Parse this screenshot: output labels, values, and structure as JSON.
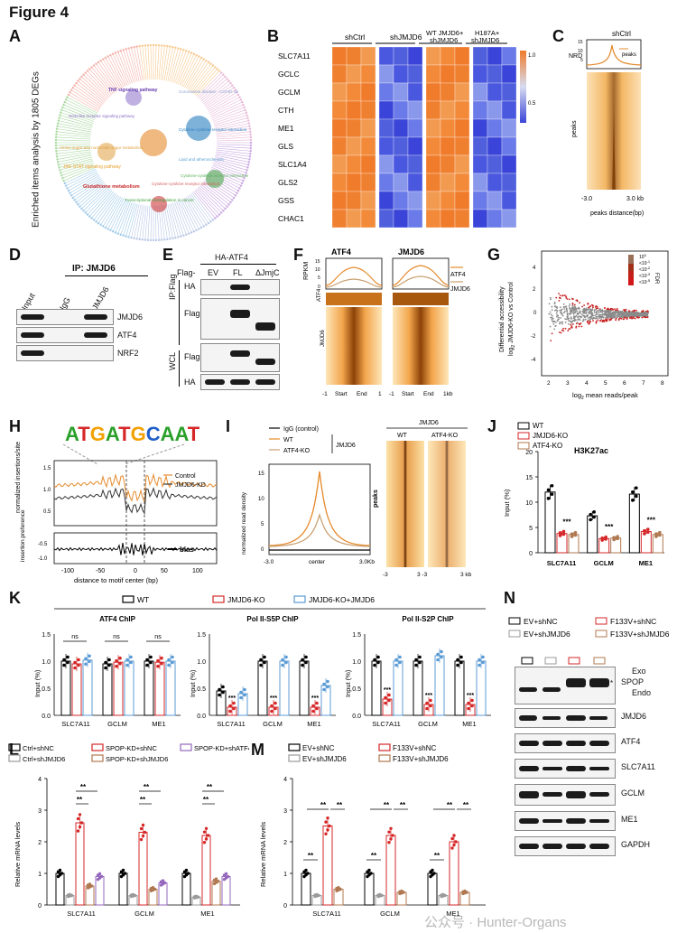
{
  "figure_title": "Figure 4",
  "panels": {
    "A": {
      "label": "A",
      "side_label": "Enriched items analysis by 1805 DEGs",
      "terms": [
        {
          "text": "TNF signaling pathway",
          "color": "#6a3fb0"
        },
        {
          "text": "Coronavirus disease - COVID-19",
          "color": "#8aa0d0"
        },
        {
          "text": "NOD-like receptor signaling pathway",
          "color": "#8a6fc8"
        },
        {
          "text": "Cytokine-cytokine receptor interaction",
          "color": "#2a7fc0"
        },
        {
          "text": "Lipid and atherosclerosis",
          "color": "#5aa0d0"
        },
        {
          "text": "Amino sugar and nucleotide sugar metabolism",
          "color": "#e0a040"
        },
        {
          "text": "JAK-STAT signaling pathway",
          "color": "#e8a030"
        },
        {
          "text": "Cytokine-cytokine receptor interaction",
          "color": "#5ab05a"
        },
        {
          "text": "Glutathione metabolism",
          "color": "#c82828"
        },
        {
          "text": "Cytokine-cytokine receptor interaction",
          "color": "#d86060"
        },
        {
          "text": "Transcriptional misregulation in cancer",
          "color": "#40a040"
        }
      ]
    },
    "B": {
      "label": "B",
      "groups": [
        "shCtrl",
        "shJMJD6",
        "WT JMJD6+\nshJMJD6",
        "H187A+\nshJMJD6"
      ],
      "genes": [
        "SLC7A11",
        "GCLC",
        "GCLM",
        "CTH",
        "ME1",
        "GLS",
        "SLC1A4",
        "GLS2",
        "GSS",
        "CHAC1"
      ],
      "scale_ticks": [
        "1.0",
        "0.5"
      ]
    },
    "C": {
      "label": "C",
      "title": "shCtrl",
      "ylabel_top": "NRD",
      "ticks_top": [
        "15",
        "10",
        "5"
      ],
      "legend": "peaks",
      "ylabel_heat": "peaks",
      "x_ticks": [
        "-3.0",
        "3.0 kb"
      ],
      "xlabel": "peaks distance(bp)"
    },
    "D": {
      "label": "D",
      "ip": "IP: JMJD6",
      "lanes": [
        "Input",
        "IgG",
        "JMJD6"
      ],
      "rows": [
        "JMJD6",
        "ATF4",
        "NRF2"
      ]
    },
    "E": {
      "label": "E",
      "header": "HA-ATF4",
      "flag_label": "Flag-",
      "lanes": [
        "EV",
        "FL",
        "ΔJmjC"
      ],
      "section_ip": "IP:Flag",
      "section_wcl": "WCL",
      "rows": [
        "HA",
        "Flag",
        "Flag",
        "HA"
      ]
    },
    "F": {
      "label": "F",
      "titles": [
        "ATF4",
        "JMJD6"
      ],
      "ylabel": "RPKM",
      "ticks": [
        "15",
        "10",
        "5",
        "0"
      ],
      "legend": [
        "ATF4",
        "JMJD6"
      ],
      "row_labels": [
        "ATF4",
        "JMJD6"
      ],
      "x_ticks": [
        "-1",
        "Start",
        "End",
        "1",
        "-1",
        "Start",
        "End",
        "1kb"
      ]
    },
    "G": {
      "label": "G",
      "ylabel_1": "Differential accessibility",
      "ylabel_2": "log",
      "ylabel_2_sub": "2",
      "ylabel_2_rest": " JMJD6-KO vs Control",
      "xlabel": "log",
      "xlabel_sub": "2",
      "xlabel_rest": " mean reads/peak",
      "x_ticks": [
        "2",
        "3",
        "4",
        "5",
        "6",
        "7",
        "8"
      ],
      "y_ticks": [
        "4",
        "2",
        "0",
        "-2",
        "-4"
      ],
      "legend_title": "FDR",
      "legend_items": [
        "10",
        "<10",
        "<10",
        "<10",
        "<10"
      ],
      "legend_exps": [
        "0",
        "-1",
        "-2",
        "-3",
        "-5"
      ]
    },
    "H": {
      "label": "H",
      "motif": "ATGATGCAAT",
      "legend": [
        "Control",
        "JMJD6-KD"
      ],
      "ylabel_top": "normalized insertions/site",
      "ylabel_bottom": "insertion preference",
      "bias_label": "bias",
      "y_ticks_top": [
        "1.5",
        "1.0",
        "0.5"
      ],
      "y_ticks_bottom": [
        "-0.5",
        "-1.0"
      ],
      "x_ticks": [
        "-100",
        "-50",
        "0",
        "50",
        "100"
      ],
      "xlabel": "distance to motif center (bp)"
    },
    "I": {
      "label": "I",
      "legend": [
        "IgG (control)",
        "WT",
        "ATF4-KO"
      ],
      "group_label": "JMJD6",
      "ylabel": "normalized read density",
      "y_ticks": [
        "15",
        "10",
        "5",
        "0"
      ],
      "x_ticks": [
        "-3.0",
        "center",
        "3.0Kb"
      ],
      "heat_title": "JMJD6",
      "heat_cols": [
        "WT",
        "ATF4-KO"
      ],
      "heat_ylabel": "peaks",
      "heat_x_ticks": [
        "-3",
        "3 -3",
        "3 kb"
      ]
    },
    "J": {
      "label": "J",
      "ylabel": "Input (%)"
    },
    "K": {
      "label": "K",
      "legend": [
        "WT",
        "JMJD6-KO",
        "JMJD6-KO+JMJD6"
      ],
      "titles": [
        "ATF4 ChIP",
        "Pol II-S5P ChIP",
        "Pol II-S2P ChIP"
      ],
      "ylabel": "Input (%)",
      "genes": [
        "SLC7A11",
        "GCLM",
        "ME1"
      ],
      "y_ticks": [
        "1.5",
        "1.0",
        "0.5",
        "0.0"
      ],
      "ns": "ns",
      "stars": "***"
    },
    "L": {
      "label": "L",
      "legend": [
        "Ctrl+shNC",
        "SPOP-KD+shNC",
        "SPOP-KD+shATF4",
        "Ctrl+shJMJD6",
        "SPOP-KD+shJMJD6"
      ],
      "ylabel": "Relative mRNA levels",
      "y_ticks": [
        "4",
        "3",
        "2",
        "1",
        "0"
      ],
      "genes": [
        "SLC7A11",
        "GCLM",
        "ME1"
      ],
      "stars": "**"
    },
    "M": {
      "label": "M",
      "legend": [
        "EV+shNC",
        "F133V+shNC",
        "EV+shJMJD6",
        "F133V+shJMJD6"
      ],
      "ylabel": "Relative mRNA levels",
      "y_ticks": [
        "4",
        "3",
        "2",
        "1",
        "0"
      ],
      "genes": [
        "SLC7A11",
        "GCLM",
        "ME1"
      ],
      "stars": "**"
    },
    "N": {
      "label": "N",
      "legend": [
        "EV+shNC",
        "F133V+shNC",
        "EV+shJMJD6",
        "F133V+shJMJD6"
      ],
      "rows": [
        "SPOP",
        "JMJD6",
        "ATF4",
        "SLC7A11",
        "GCLM",
        "ME1",
        "GAPDH"
      ],
      "spop_sub": [
        "Exo",
        "Endo"
      ],
      "asterisk": "*"
    }
  },
  "watermark": "公众号 · Hunter-Organs",
  "chart_data": {
    "type": "bar",
    "title": "H3K27ac",
    "xlabel": "",
    "ylabel": "Input (%)",
    "ylim": [
      0,
      20
    ],
    "y_ticks": [
      0,
      5,
      10,
      15,
      20
    ],
    "categories": [
      "SLC7A11",
      "GCLM",
      "ME1"
    ],
    "series": [
      {
        "name": "WT",
        "color": "#000000",
        "values": [
          12.0,
          7.3,
          11.6
        ]
      },
      {
        "name": "JMJD6-KO",
        "color": "#d62728",
        "values": [
          3.8,
          2.8,
          4.2
        ]
      },
      {
        "name": "ATF4-KO",
        "color": "#b07850",
        "values": [
          3.6,
          2.9,
          3.6
        ]
      }
    ],
    "significance": [
      "***",
      "***",
      "***"
    ]
  }
}
